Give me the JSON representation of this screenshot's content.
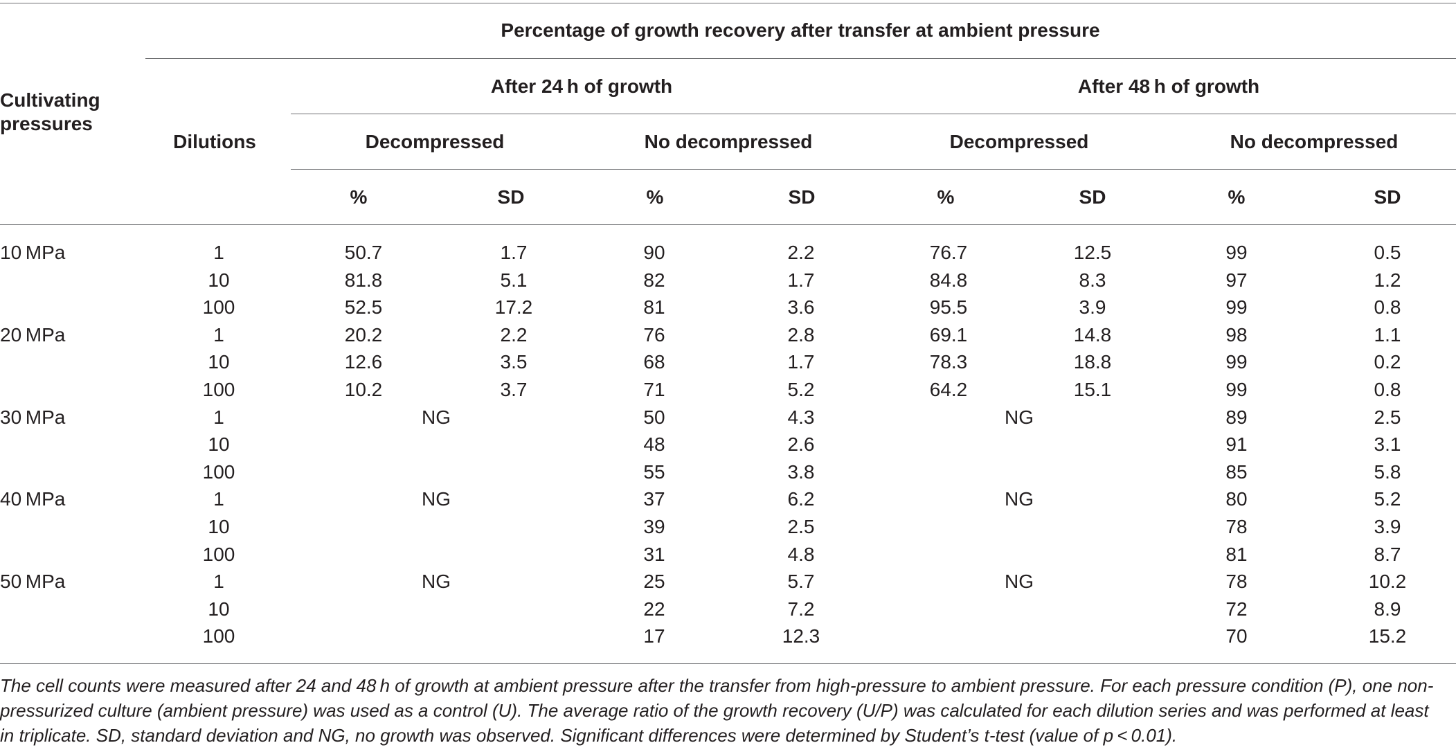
{
  "header": {
    "spanning_title": "Percentage of growth recovery after transfer at ambient pressure",
    "col_pressure_line1": "Cultivating",
    "col_pressure_line2": "pressures",
    "col_dilutions": "Dilutions",
    "group_24h": "After 24 h of growth",
    "group_48h": "After 48 h of growth",
    "sub_decompressed": "Decompressed",
    "sub_no_decompressed": "No decompressed",
    "stat_pct": "%",
    "stat_sd": "SD"
  },
  "rows": [
    {
      "pressure": "10 MPa",
      "dilution": "1",
      "d24_pct": "50.7",
      "d24_sd": "1.7",
      "n24_pct": "90",
      "n24_sd": "2.2",
      "d48_pct": "76.7",
      "d48_sd": "12.5",
      "n48_pct": "99",
      "n48_sd": "0.5"
    },
    {
      "pressure": "",
      "dilution": "10",
      "d24_pct": "81.8",
      "d24_sd": "5.1",
      "n24_pct": "82",
      "n24_sd": "1.7",
      "d48_pct": "84.8",
      "d48_sd": "8.3",
      "n48_pct": "97",
      "n48_sd": "1.2"
    },
    {
      "pressure": "",
      "dilution": "100",
      "d24_pct": "52.5",
      "d24_sd": "17.2",
      "n24_pct": "81",
      "n24_sd": "3.6",
      "d48_pct": "95.5",
      "d48_sd": "3.9",
      "n48_pct": "99",
      "n48_sd": "0.8"
    },
    {
      "pressure": "20 MPa",
      "dilution": "1",
      "d24_pct": "20.2",
      "d24_sd": "2.2",
      "n24_pct": "76",
      "n24_sd": "2.8",
      "d48_pct": "69.1",
      "d48_sd": "14.8",
      "n48_pct": "98",
      "n48_sd": "1.1"
    },
    {
      "pressure": "",
      "dilution": "10",
      "d24_pct": "12.6",
      "d24_sd": "3.5",
      "n24_pct": "68",
      "n24_sd": "1.7",
      "d48_pct": "78.3",
      "d48_sd": "18.8",
      "n48_pct": "99",
      "n48_sd": "0.2"
    },
    {
      "pressure": "",
      "dilution": "100",
      "d24_pct": "10.2",
      "d24_sd": "3.7",
      "n24_pct": "71",
      "n24_sd": "5.2",
      "d48_pct": "64.2",
      "d48_sd": "15.1",
      "n48_pct": "99",
      "n48_sd": "0.8"
    },
    {
      "pressure": "30 MPa",
      "dilution": "1",
      "d24_ng": "NG",
      "n24_pct": "50",
      "n24_sd": "4.3",
      "d48_ng": "NG",
      "n48_pct": "89",
      "n48_sd": "2.5"
    },
    {
      "pressure": "",
      "dilution": "10",
      "n24_pct": "48",
      "n24_sd": "2.6",
      "n48_pct": "91",
      "n48_sd": "3.1"
    },
    {
      "pressure": "",
      "dilution": "100",
      "n24_pct": "55",
      "n24_sd": "3.8",
      "n48_pct": "85",
      "n48_sd": "5.8"
    },
    {
      "pressure": "40 MPa",
      "dilution": "1",
      "d24_ng": "NG",
      "n24_pct": "37",
      "n24_sd": "6.2",
      "d48_ng": "NG",
      "n48_pct": "80",
      "n48_sd": "5.2"
    },
    {
      "pressure": "",
      "dilution": "10",
      "n24_pct": "39",
      "n24_sd": "2.5",
      "n48_pct": "78",
      "n48_sd": "3.9"
    },
    {
      "pressure": "",
      "dilution": "100",
      "n24_pct": "31",
      "n24_sd": "4.8",
      "n48_pct": "81",
      "n48_sd": "8.7"
    },
    {
      "pressure": "50 MPa",
      "dilution": "1",
      "d24_ng": "NG",
      "n24_pct": "25",
      "n24_sd": "5.7",
      "d48_ng": "NG",
      "n48_pct": "78",
      "n48_sd": "10.2"
    },
    {
      "pressure": "",
      "dilution": "10",
      "n24_pct": "22",
      "n24_sd": "7.2",
      "n48_pct": "72",
      "n48_sd": "8.9"
    },
    {
      "pressure": "",
      "dilution": "100",
      "n24_pct": "17",
      "n24_sd": "12.3",
      "n48_pct": "70",
      "n48_sd": "15.2"
    }
  ],
  "footnote": "The cell counts were measured after 24 and 48 h of growth at ambient pressure after the transfer from high-pressure to ambient pressure. For each pressure condition (P), one non-pressurized culture (ambient pressure) was used as a control (U). The average ratio of the growth recovery (U/P) was calculated for each dilution series and was performed at least in triplicate. SD, standard deviation and NG, no growth was observed. Significant differences were determined by Student’s t-test (value of p < 0.01)."
}
